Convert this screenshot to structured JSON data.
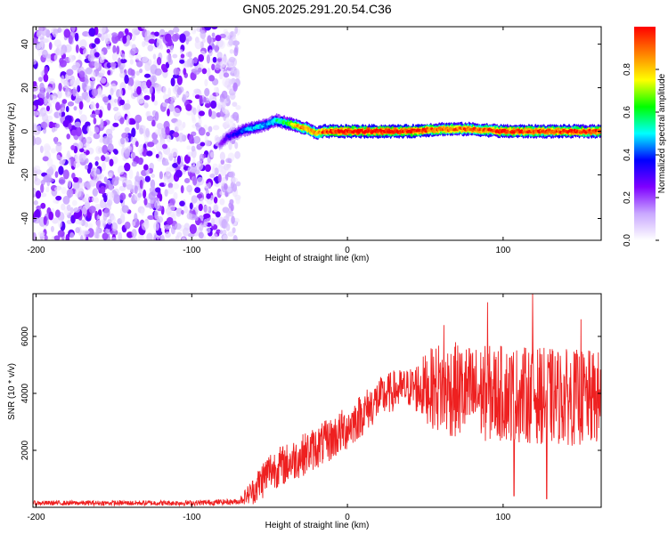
{
  "figure": {
    "title": "GN05.2025.291.20.54.C36"
  },
  "chart_data": [
    {
      "type": "heatmap",
      "xlabel": "Height of straight line (km)",
      "ylabel": "Frequency (Hz)",
      "xlim": [
        -202,
        163
      ],
      "ylim": [
        -50,
        48
      ],
      "x_ticks": [
        -200,
        -100,
        0,
        100
      ],
      "y_ticks": [
        -40,
        -20,
        0,
        20,
        40
      ],
      "colorbar": {
        "label": "Normalized spectral amplitude",
        "range": [
          0,
          1
        ],
        "ticks": [
          "0.0",
          "0.2",
          "0.4",
          "0.6",
          "0.8"
        ],
        "colors": [
          "#ffffff",
          "#c9a8ff",
          "#7f00ff",
          "#0000ff",
          "#00ffff",
          "#00ff00",
          "#ffff00",
          "#ff8000",
          "#ff0000"
        ]
      },
      "noise_region_x": [
        -202,
        -70
      ],
      "ridge": [
        {
          "x": -82,
          "f": -6,
          "amp": 0.2
        },
        {
          "x": -78,
          "f": -3,
          "amp": 0.3
        },
        {
          "x": -72,
          "f": -1,
          "amp": 0.35
        },
        {
          "x": -65,
          "f": 1,
          "amp": 0.45
        },
        {
          "x": -58,
          "f": 2,
          "amp": 0.5
        },
        {
          "x": -52,
          "f": 3,
          "amp": 0.45
        },
        {
          "x": -46,
          "f": 5,
          "amp": 0.55
        },
        {
          "x": -40,
          "f": 4,
          "amp": 0.6
        },
        {
          "x": -35,
          "f": 3,
          "amp": 0.75
        },
        {
          "x": -30,
          "f": 2,
          "amp": 0.85
        },
        {
          "x": -25,
          "f": 1,
          "amp": 0.85
        },
        {
          "x": -20,
          "f": -1,
          "amp": 0.8
        },
        {
          "x": -15,
          "f": 0,
          "amp": 0.95
        },
        {
          "x": 0,
          "f": 0,
          "amp": 1.0
        },
        {
          "x": 40,
          "f": 0,
          "amp": 1.0
        },
        {
          "x": 60,
          "f": 1,
          "amp": 0.9
        },
        {
          "x": 80,
          "f": 1,
          "amp": 0.9
        },
        {
          "x": 100,
          "f": 0,
          "amp": 0.95
        },
        {
          "x": 130,
          "f": 0,
          "amp": 0.95
        },
        {
          "x": 163,
          "f": 0,
          "amp": 0.95
        }
      ]
    },
    {
      "type": "line",
      "xlabel": "Height of straight line (km)",
      "ylabel": "SNR (10 * v/v)",
      "xlim": [
        -202,
        163
      ],
      "ylim": [
        0,
        7500
      ],
      "x_ticks": [
        -200,
        -100,
        0,
        100
      ],
      "y_ticks": [
        2000,
        4000,
        6000
      ],
      "color": "#ff0000",
      "trend": [
        {
          "x": -202,
          "y": 150
        },
        {
          "x": -100,
          "y": 150
        },
        {
          "x": -70,
          "y": 200
        },
        {
          "x": -60,
          "y": 600
        },
        {
          "x": -50,
          "y": 1300
        },
        {
          "x": -40,
          "y": 1500
        },
        {
          "x": -30,
          "y": 1800
        },
        {
          "x": -20,
          "y": 2100
        },
        {
          "x": -10,
          "y": 2400
        },
        {
          "x": 0,
          "y": 2800
        },
        {
          "x": 10,
          "y": 3300
        },
        {
          "x": 20,
          "y": 3800
        },
        {
          "x": 30,
          "y": 4100
        },
        {
          "x": 40,
          "y": 4200
        },
        {
          "x": 50,
          "y": 4200
        },
        {
          "x": 60,
          "y": 4200
        },
        {
          "x": 80,
          "y": 4000
        },
        {
          "x": 100,
          "y": 4000
        },
        {
          "x": 130,
          "y": 3900
        },
        {
          "x": 163,
          "y": 3800
        }
      ],
      "jitter": [
        {
          "x": -202,
          "amp": 80
        },
        {
          "x": -70,
          "amp": 100
        },
        {
          "x": -55,
          "amp": 700
        },
        {
          "x": 0,
          "amp": 800
        },
        {
          "x": 40,
          "amp": 700
        },
        {
          "x": 60,
          "amp": 1700
        },
        {
          "x": 163,
          "amp": 1700
        }
      ],
      "peaks": [
        {
          "x": 90,
          "y": 7200
        },
        {
          "x": 119,
          "y": 7500
        },
        {
          "x": 62,
          "y": 6400
        },
        {
          "x": 150,
          "y": 6600
        },
        {
          "x": 107,
          "y": 400
        },
        {
          "x": 128,
          "y": 300
        }
      ]
    }
  ]
}
